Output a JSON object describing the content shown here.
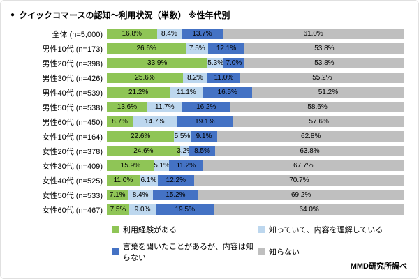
{
  "title": "クイックコマースの認知〜利用状況（単数） ※性年代別",
  "source": "MMD研究所調べ",
  "chart_data": {
    "type": "bar",
    "orientation": "horizontal",
    "stacked": true,
    "title": "クイックコマースの認知〜利用状況（単数） ※性年代別",
    "xlim": [
      0,
      100
    ],
    "legend_position": "bottom",
    "categories": [
      "全体 (n=5,000)",
      "男性10代 (n=173)",
      "男性20代 (n=398)",
      "男性30代 (n=426)",
      "男性40代 (n=539)",
      "男性50代 (n=538)",
      "男性60代 (n=450)",
      "女性10代 (n=164)",
      "女性20代 (n=378)",
      "女性30代 (n=409)",
      "女性40代 (n=525)",
      "女性50代 (n=533)",
      "女性60代 (n=467)"
    ],
    "series": [
      {
        "name": "利用経験がある",
        "color": "#8fc556",
        "values": [
          16.8,
          26.6,
          33.9,
          25.6,
          21.2,
          13.6,
          8.7,
          22.6,
          24.6,
          15.9,
          11.0,
          7.1,
          7.5
        ]
      },
      {
        "name": "知っていて、内容を理解している",
        "color": "#bdd7ee",
        "values": [
          8.4,
          7.5,
          5.3,
          8.2,
          11.1,
          11.7,
          14.7,
          5.5,
          3.2,
          5.1,
          6.1,
          8.4,
          9.0
        ]
      },
      {
        "name": "言葉を聞いたことがあるが、内容は知らない",
        "color": "#4472c4",
        "values": [
          13.7,
          12.1,
          7.0,
          11.0,
          16.5,
          16.2,
          19.1,
          9.1,
          8.5,
          11.2,
          12.2,
          15.2,
          19.5
        ]
      },
      {
        "name": "知らない",
        "color": "#bfbfbf",
        "values": [
          61.0,
          53.8,
          53.8,
          55.2,
          51.2,
          58.6,
          57.6,
          62.8,
          63.8,
          67.7,
          70.7,
          69.2,
          64.0
        ]
      }
    ]
  }
}
